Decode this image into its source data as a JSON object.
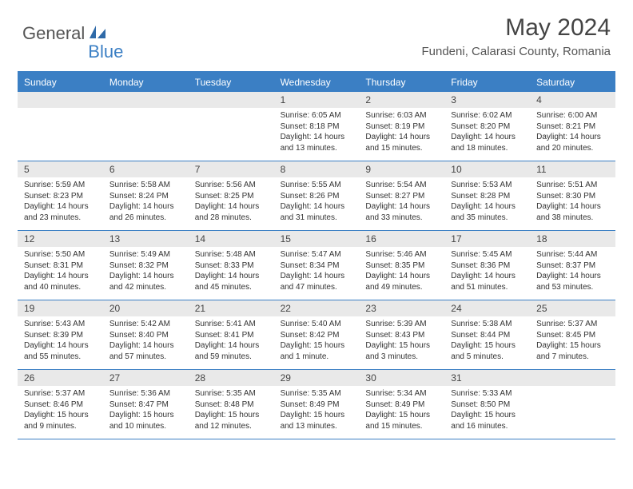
{
  "brand": {
    "text_general": "General",
    "text_blue": "Blue",
    "sail_color": "#2f6aa8"
  },
  "header": {
    "month_title": "May 2024",
    "location": "Fundeni, Calarasi County, Romania"
  },
  "colors": {
    "accent": "#3b7fc4",
    "header_text": "#ffffff",
    "day_bar_bg": "#e9e9e9",
    "body_text": "#333333",
    "title_text": "#444444"
  },
  "day_names": [
    "Sunday",
    "Monday",
    "Tuesday",
    "Wednesday",
    "Thursday",
    "Friday",
    "Saturday"
  ],
  "weeks": [
    [
      {
        "blank": true
      },
      {
        "blank": true
      },
      {
        "blank": true
      },
      {
        "num": "1",
        "sunrise": "Sunrise: 6:05 AM",
        "sunset": "Sunset: 8:18 PM",
        "day_a": "Daylight: 14 hours",
        "day_b": "and 13 minutes."
      },
      {
        "num": "2",
        "sunrise": "Sunrise: 6:03 AM",
        "sunset": "Sunset: 8:19 PM",
        "day_a": "Daylight: 14 hours",
        "day_b": "and 15 minutes."
      },
      {
        "num": "3",
        "sunrise": "Sunrise: 6:02 AM",
        "sunset": "Sunset: 8:20 PM",
        "day_a": "Daylight: 14 hours",
        "day_b": "and 18 minutes."
      },
      {
        "num": "4",
        "sunrise": "Sunrise: 6:00 AM",
        "sunset": "Sunset: 8:21 PM",
        "day_a": "Daylight: 14 hours",
        "day_b": "and 20 minutes."
      }
    ],
    [
      {
        "num": "5",
        "sunrise": "Sunrise: 5:59 AM",
        "sunset": "Sunset: 8:23 PM",
        "day_a": "Daylight: 14 hours",
        "day_b": "and 23 minutes."
      },
      {
        "num": "6",
        "sunrise": "Sunrise: 5:58 AM",
        "sunset": "Sunset: 8:24 PM",
        "day_a": "Daylight: 14 hours",
        "day_b": "and 26 minutes."
      },
      {
        "num": "7",
        "sunrise": "Sunrise: 5:56 AM",
        "sunset": "Sunset: 8:25 PM",
        "day_a": "Daylight: 14 hours",
        "day_b": "and 28 minutes."
      },
      {
        "num": "8",
        "sunrise": "Sunrise: 5:55 AM",
        "sunset": "Sunset: 8:26 PM",
        "day_a": "Daylight: 14 hours",
        "day_b": "and 31 minutes."
      },
      {
        "num": "9",
        "sunrise": "Sunrise: 5:54 AM",
        "sunset": "Sunset: 8:27 PM",
        "day_a": "Daylight: 14 hours",
        "day_b": "and 33 minutes."
      },
      {
        "num": "10",
        "sunrise": "Sunrise: 5:53 AM",
        "sunset": "Sunset: 8:28 PM",
        "day_a": "Daylight: 14 hours",
        "day_b": "and 35 minutes."
      },
      {
        "num": "11",
        "sunrise": "Sunrise: 5:51 AM",
        "sunset": "Sunset: 8:30 PM",
        "day_a": "Daylight: 14 hours",
        "day_b": "and 38 minutes."
      }
    ],
    [
      {
        "num": "12",
        "sunrise": "Sunrise: 5:50 AM",
        "sunset": "Sunset: 8:31 PM",
        "day_a": "Daylight: 14 hours",
        "day_b": "and 40 minutes."
      },
      {
        "num": "13",
        "sunrise": "Sunrise: 5:49 AM",
        "sunset": "Sunset: 8:32 PM",
        "day_a": "Daylight: 14 hours",
        "day_b": "and 42 minutes."
      },
      {
        "num": "14",
        "sunrise": "Sunrise: 5:48 AM",
        "sunset": "Sunset: 8:33 PM",
        "day_a": "Daylight: 14 hours",
        "day_b": "and 45 minutes."
      },
      {
        "num": "15",
        "sunrise": "Sunrise: 5:47 AM",
        "sunset": "Sunset: 8:34 PM",
        "day_a": "Daylight: 14 hours",
        "day_b": "and 47 minutes."
      },
      {
        "num": "16",
        "sunrise": "Sunrise: 5:46 AM",
        "sunset": "Sunset: 8:35 PM",
        "day_a": "Daylight: 14 hours",
        "day_b": "and 49 minutes."
      },
      {
        "num": "17",
        "sunrise": "Sunrise: 5:45 AM",
        "sunset": "Sunset: 8:36 PM",
        "day_a": "Daylight: 14 hours",
        "day_b": "and 51 minutes."
      },
      {
        "num": "18",
        "sunrise": "Sunrise: 5:44 AM",
        "sunset": "Sunset: 8:37 PM",
        "day_a": "Daylight: 14 hours",
        "day_b": "and 53 minutes."
      }
    ],
    [
      {
        "num": "19",
        "sunrise": "Sunrise: 5:43 AM",
        "sunset": "Sunset: 8:39 PM",
        "day_a": "Daylight: 14 hours",
        "day_b": "and 55 minutes."
      },
      {
        "num": "20",
        "sunrise": "Sunrise: 5:42 AM",
        "sunset": "Sunset: 8:40 PM",
        "day_a": "Daylight: 14 hours",
        "day_b": "and 57 minutes."
      },
      {
        "num": "21",
        "sunrise": "Sunrise: 5:41 AM",
        "sunset": "Sunset: 8:41 PM",
        "day_a": "Daylight: 14 hours",
        "day_b": "and 59 minutes."
      },
      {
        "num": "22",
        "sunrise": "Sunrise: 5:40 AM",
        "sunset": "Sunset: 8:42 PM",
        "day_a": "Daylight: 15 hours",
        "day_b": "and 1 minute."
      },
      {
        "num": "23",
        "sunrise": "Sunrise: 5:39 AM",
        "sunset": "Sunset: 8:43 PM",
        "day_a": "Daylight: 15 hours",
        "day_b": "and 3 minutes."
      },
      {
        "num": "24",
        "sunrise": "Sunrise: 5:38 AM",
        "sunset": "Sunset: 8:44 PM",
        "day_a": "Daylight: 15 hours",
        "day_b": "and 5 minutes."
      },
      {
        "num": "25",
        "sunrise": "Sunrise: 5:37 AM",
        "sunset": "Sunset: 8:45 PM",
        "day_a": "Daylight: 15 hours",
        "day_b": "and 7 minutes."
      }
    ],
    [
      {
        "num": "26",
        "sunrise": "Sunrise: 5:37 AM",
        "sunset": "Sunset: 8:46 PM",
        "day_a": "Daylight: 15 hours",
        "day_b": "and 9 minutes."
      },
      {
        "num": "27",
        "sunrise": "Sunrise: 5:36 AM",
        "sunset": "Sunset: 8:47 PM",
        "day_a": "Daylight: 15 hours",
        "day_b": "and 10 minutes."
      },
      {
        "num": "28",
        "sunrise": "Sunrise: 5:35 AM",
        "sunset": "Sunset: 8:48 PM",
        "day_a": "Daylight: 15 hours",
        "day_b": "and 12 minutes."
      },
      {
        "num": "29",
        "sunrise": "Sunrise: 5:35 AM",
        "sunset": "Sunset: 8:49 PM",
        "day_a": "Daylight: 15 hours",
        "day_b": "and 13 minutes."
      },
      {
        "num": "30",
        "sunrise": "Sunrise: 5:34 AM",
        "sunset": "Sunset: 8:49 PM",
        "day_a": "Daylight: 15 hours",
        "day_b": "and 15 minutes."
      },
      {
        "num": "31",
        "sunrise": "Sunrise: 5:33 AM",
        "sunset": "Sunset: 8:50 PM",
        "day_a": "Daylight: 15 hours",
        "day_b": "and 16 minutes."
      },
      {
        "blank": true
      }
    ]
  ]
}
